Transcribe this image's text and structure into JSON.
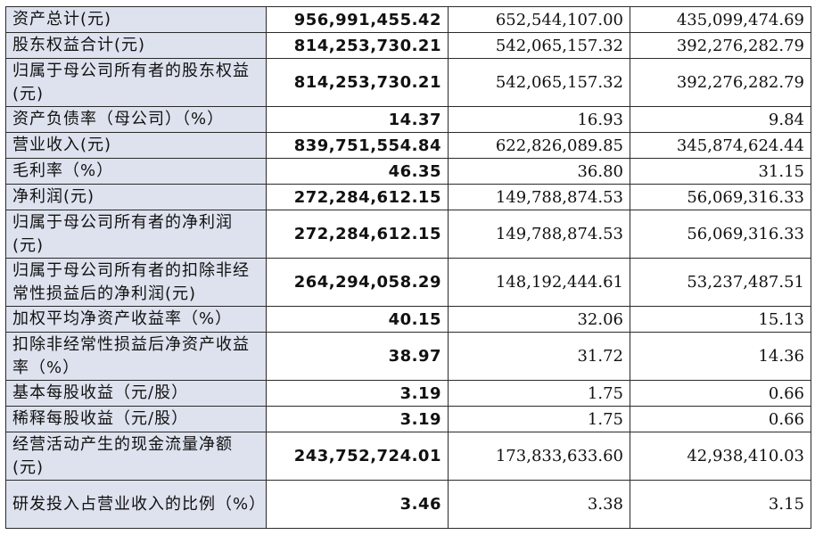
{
  "rows": [
    {
      "label": "资产总计(元)",
      "v1": "956,991,455.42",
      "v2": "652,544,107.00",
      "v3": "435,099,474.69"
    },
    {
      "label": "股东权益合计(元)",
      "v1": "814,253,730.21",
      "v2": "542,065,157.32",
      "v3": "392,276,282.79"
    },
    {
      "label": "归属于母公司所有者的股东权益(元)",
      "v1": "814,253,730.21",
      "v2": "542,065,157.32",
      "v3": "392,276,282.79"
    },
    {
      "label": "资产负债率（母公司）（%）",
      "v1": "14.37",
      "v2": "16.93",
      "v3": "9.84"
    },
    {
      "label": "营业收入(元)",
      "v1": "839,751,554.84",
      "v2": "622,826,089.85",
      "v3": "345,874,624.44"
    },
    {
      "label": "毛利率（%）",
      "v1": "46.35",
      "v2": "36.80",
      "v3": "31.15"
    },
    {
      "label": "净利润(元)",
      "v1": "272,284,612.15",
      "v2": "149,788,874.53",
      "v3": "56,069,316.33"
    },
    {
      "label": "归属于母公司所有者的净利润(元)",
      "v1": "272,284,612.15",
      "v2": "149,788,874.53",
      "v3": "56,069,316.33"
    },
    {
      "label": "归属于母公司所有者的扣除非经常性损益后的净利润(元)",
      "v1": "264,294,058.29",
      "v2": "148,192,444.61",
      "v3": "53,237,487.51"
    },
    {
      "label": "加权平均净资产收益率（%）",
      "v1": "40.15",
      "v2": "32.06",
      "v3": "15.13"
    },
    {
      "label": "扣除非经常性损益后净资产收益率（%）",
      "v1": "38.97",
      "v2": "31.72",
      "v3": "14.36"
    },
    {
      "label": "基本每股收益（元/股）",
      "v1": "3.19",
      "v2": "1.75",
      "v3": "0.66"
    },
    {
      "label": "稀释每股收益（元/股）",
      "v1": "3.19",
      "v2": "1.75",
      "v3": "0.66"
    },
    {
      "label": "经营活动产生的现金流量净额(元)",
      "v1": "243,752,724.01",
      "v2": "173,833,633.60",
      "v3": "42,938,410.03"
    },
    {
      "label": "研发投入占营业收入的比例（%）",
      "v1": "3.46",
      "v2": "3.38",
      "v3": "3.15"
    }
  ]
}
